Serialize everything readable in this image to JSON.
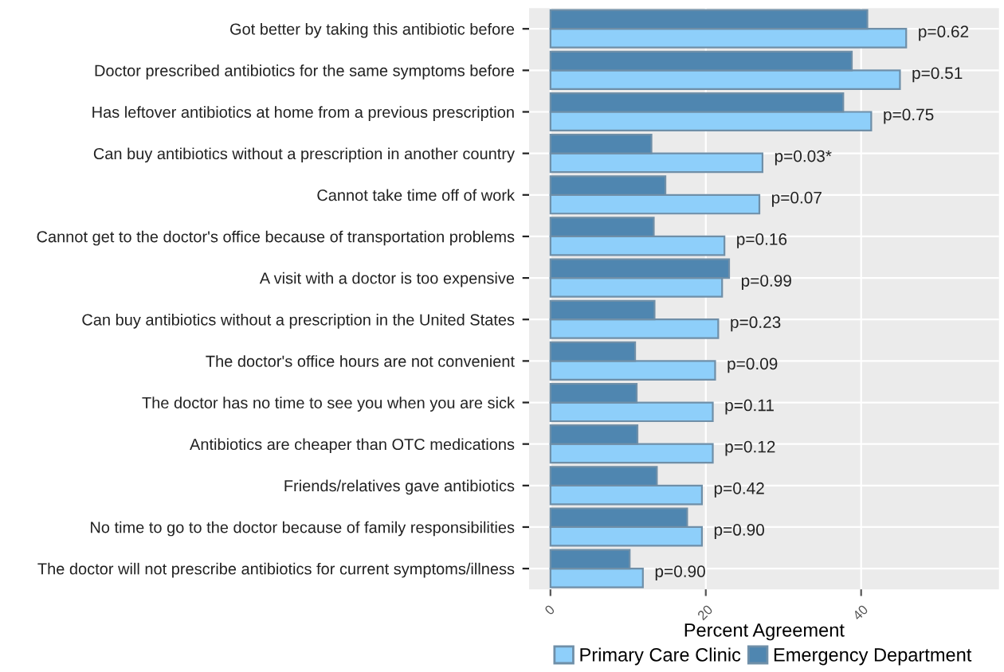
{
  "chart_data": {
    "type": "bar",
    "orientation": "horizontal",
    "xlabel": "Percent Agreement",
    "categories": [
      "Got better by taking this antibiotic before",
      "Doctor prescribed antibiotics for the same symptoms before",
      "Has leftover antibiotics at home from a previous prescription",
      "Can buy antibiotics without a prescription in another country",
      "Cannot take time off of work",
      "Cannot get to the doctor's office because of transportation problems",
      "A visit with a doctor is too expensive",
      "Can buy antibiotics without a prescription in the United States",
      "The doctor's office hours are not convenient",
      "The doctor has no time to see you when you are sick",
      "Antibiotics are cheaper than OTC medications",
      "Friends/relatives gave antibiotics",
      "No time to go to the doctor because of family responsibilities",
      "The doctor will not prescribe antibiotics for current symptoms/illness"
    ],
    "series": [
      {
        "name": "Primary Care Clinic",
        "color": "#8ecffa",
        "values": [
          45.8,
          45.0,
          41.3,
          27.3,
          26.9,
          22.4,
          22.1,
          21.6,
          21.2,
          20.9,
          20.9,
          19.5,
          19.5,
          11.9
        ]
      },
      {
        "name": "Emergency Department",
        "color": "#4f86b0",
        "values": [
          40.8,
          38.8,
          37.7,
          13.0,
          14.8,
          13.3,
          23.0,
          13.4,
          10.9,
          11.1,
          11.2,
          13.7,
          17.6,
          10.2
        ]
      }
    ],
    "xlim": [
      -2.75,
      57.75
    ],
    "xticks": [
      0,
      20,
      40
    ],
    "grid": true,
    "legend": "bottom",
    "annotations": [
      "p=0.62",
      "p=0.51",
      "p=0.75",
      "p=0.03*",
      "p=0.07",
      "p=0.16",
      "p=0.99",
      "p=0.23",
      "p=0.09",
      "p=0.11",
      "p=0.12",
      "p=0.42",
      "p=0.90",
      "p=0.90"
    ]
  }
}
